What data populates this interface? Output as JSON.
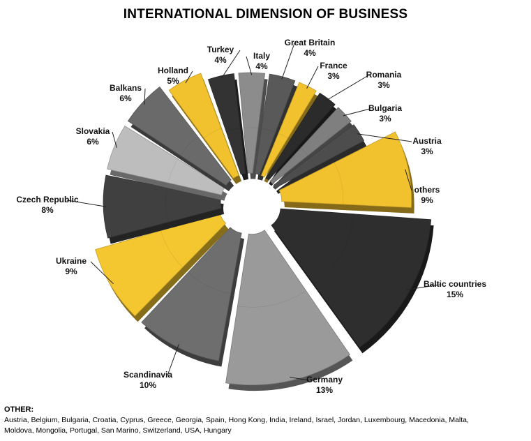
{
  "title": "INTERNATIONAL DIMENSION OF BUSINESS",
  "chart_data": {
    "type": "pie",
    "title": "INTERNATIONAL DIMENSION OF BUSINESS",
    "slices": [
      {
        "label": "Italy",
        "pct_label": "4%",
        "value": 4,
        "color": "#8c8c8c"
      },
      {
        "label": "Great Britain",
        "pct_label": "4%",
        "value": 4,
        "color": "#595959"
      },
      {
        "label": "France",
        "pct_label": "3%",
        "value": 3,
        "color": "#f2c12e"
      },
      {
        "label": "Romania",
        "pct_label": "3%",
        "value": 3,
        "color": "#2b2b2b"
      },
      {
        "label": "Bulgaria",
        "pct_label": "3%",
        "value": 3,
        "color": "#7f7f7f"
      },
      {
        "label": "Austria",
        "pct_label": "3%",
        "value": 3,
        "color": "#4d4d4d"
      },
      {
        "label": "others",
        "pct_label": "9%",
        "value": 9,
        "color": "#f2c12e"
      },
      {
        "label": "Baltic countries",
        "pct_label": "15%",
        "value": 15,
        "color": "#2e2e2e"
      },
      {
        "label": "Germany",
        "pct_label": "13%",
        "value": 13,
        "color": "#9a9a9a"
      },
      {
        "label": "Scandinavia",
        "pct_label": "10%",
        "value": 10,
        "color": "#6e6e6e"
      },
      {
        "label": "Ukraine",
        "pct_label": "9%",
        "value": 9,
        "color": "#f4c62f"
      },
      {
        "label": "Czech Republic",
        "pct_label": "8%",
        "value": 8,
        "color": "#404040"
      },
      {
        "label": "Slovakia",
        "pct_label": "6%",
        "value": 6,
        "color": "#bdbdbd"
      },
      {
        "label": "Balkans",
        "pct_label": "6%",
        "value": 6,
        "color": "#6a6a6a"
      },
      {
        "label": "Holland",
        "pct_label": "5%",
        "value": 5,
        "color": "#f2c12e"
      },
      {
        "label": "Turkey",
        "pct_label": "4%",
        "value": 4,
        "color": "#333333"
      }
    ]
  },
  "other": {
    "heading": "OTHER:",
    "line1": "Austria, Belgium, Bulgaria, Croatia, Cyprus, Greece, Georgia, Spain, Hong Kong, India, Ireland, Israel, Jordan, Luxembourg, Macedonia, Malta,",
    "line2": "Moldova, Mongolia, Portugal, San Marino, Switzerland, USA,  Hungary"
  }
}
